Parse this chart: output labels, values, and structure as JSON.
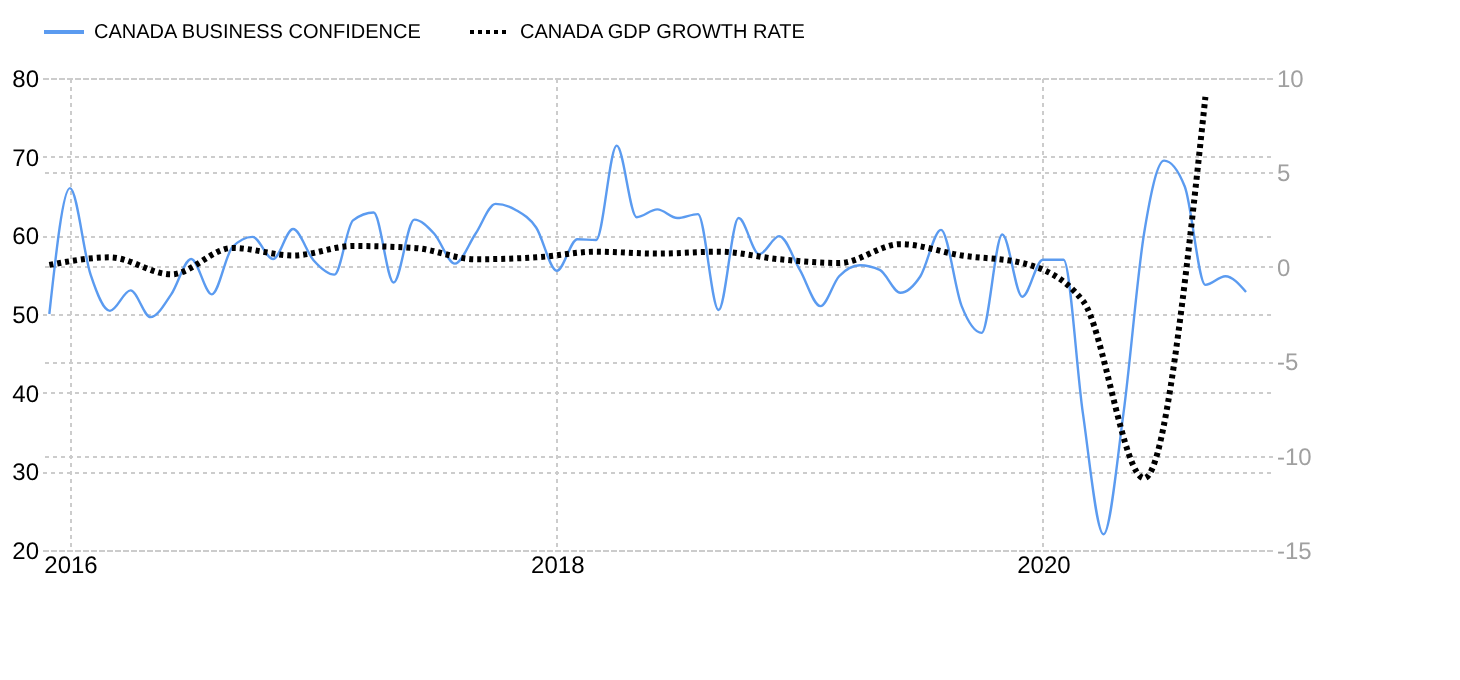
{
  "chart_data": {
    "type": "line",
    "series": [
      {
        "name": "CANADA BUSINESS CONFIDENCE",
        "color": "#5b9bf0",
        "line_style": "solid",
        "axis": "y",
        "x": [
          "2015-12",
          "2016-01",
          "2016-02",
          "2016-03",
          "2016-04",
          "2016-05",
          "2016-06",
          "2016-07",
          "2016-08",
          "2016-09",
          "2016-10",
          "2016-11",
          "2016-12",
          "2017-01",
          "2017-02",
          "2017-03",
          "2017-04",
          "2017-05",
          "2017-06",
          "2017-07",
          "2017-08",
          "2017-09",
          "2017-10",
          "2017-11",
          "2017-12",
          "2018-01",
          "2018-02",
          "2018-03",
          "2018-04",
          "2018-05",
          "2018-06",
          "2018-07",
          "2018-08",
          "2018-09",
          "2018-10",
          "2018-11",
          "2018-12",
          "2019-01",
          "2019-02",
          "2019-03",
          "2019-04",
          "2019-05",
          "2019-06",
          "2019-07",
          "2019-08",
          "2019-09",
          "2019-10",
          "2019-11",
          "2019-12",
          "2020-01",
          "2020-02",
          "2020-03",
          "2020-04",
          "2020-05",
          "2020-06",
          "2020-07",
          "2020-08",
          "2020-09",
          "2020-10",
          "2020-11"
        ],
        "values": [
          50,
          66,
          55,
          50.4,
          53,
          49.6,
          52.5,
          57,
          52.5,
          58.5,
          59.8,
          57,
          60.8,
          56.8,
          55,
          61.9,
          62.9,
          54,
          62,
          60.2,
          56.4,
          60.2,
          64,
          63.2,
          61,
          55.5,
          59.5,
          59.4,
          71.4,
          62.3,
          63.3,
          62.2,
          62.7,
          50.5,
          62.2,
          57.6,
          59.9,
          55.6,
          51,
          54.8,
          56.2,
          55.6,
          52.7,
          54.8,
          60.7,
          51,
          47.6,
          60.1,
          52.2,
          56.9,
          56.9,
          37.4,
          22,
          37.4,
          60.3,
          69.5,
          66.2,
          53.7,
          54.8,
          52.8
        ]
      },
      {
        "name": "CANADA GDP GROWTH RATE",
        "color": "#000000",
        "line_style": "dotted",
        "axis": "y2",
        "x": [
          "2015-12",
          "2016-03",
          "2016-06",
          "2016-09",
          "2016-12",
          "2017-03",
          "2017-06",
          "2017-09",
          "2017-12",
          "2018-03",
          "2018-06",
          "2018-09",
          "2018-12",
          "2019-03",
          "2019-06",
          "2019-09",
          "2019-12",
          "2020-03",
          "2020-06",
          "2020-09"
        ],
        "values": [
          0.1,
          0.5,
          -0.4,
          1.0,
          0.6,
          1.1,
          1.0,
          0.4,
          0.5,
          0.8,
          0.7,
          0.8,
          0.4,
          0.2,
          1.2,
          0.6,
          0.2,
          -1.8,
          -11.2,
          9.0
        ]
      }
    ],
    "xlim": [
      "2015-11-20",
      "2020-12-10"
    ],
    "xticks": [
      {
        "value": "2016-01-01",
        "label": "2016"
      },
      {
        "value": "2018-01-01",
        "label": "2018"
      },
      {
        "value": "2020-01-01",
        "label": "2020"
      }
    ],
    "ylim": [
      20,
      80
    ],
    "yticks": [
      20,
      30,
      40,
      50,
      60,
      70,
      80
    ],
    "y2lim": [
      -15,
      10
    ],
    "y2ticks": [
      -15,
      -10,
      -5,
      0,
      5,
      10
    ],
    "grid": true,
    "legend": "top left"
  }
}
